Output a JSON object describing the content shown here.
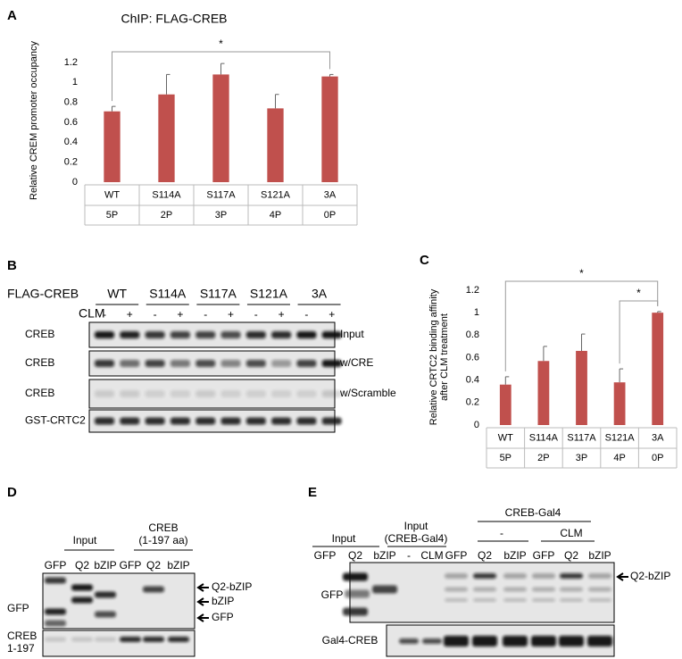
{
  "chart_data": [
    {
      "type": "bar",
      "panel": "A",
      "title": "ChIP: FLAG-CREB",
      "y_label": [
        "Relative CREM promoter occupancy"
      ],
      "categories": [
        "WT",
        "S114A",
        "S117A",
        "S121A",
        "3A"
      ],
      "sublabels": [
        "5P",
        "2P",
        "3P",
        "4P",
        "0P"
      ],
      "values": [
        0.71,
        0.88,
        1.08,
        0.74,
        1.06
      ],
      "errors": [
        0.05,
        0.2,
        0.11,
        0.14,
        0.02
      ],
      "color": "#c0504d",
      "ylim": [
        0,
        1.2
      ],
      "yticks": [
        0,
        0.2,
        0.4,
        0.6,
        0.8,
        1,
        1.2
      ],
      "annotations": [
        {
          "text": "*",
          "between": [
            "WT",
            "3A"
          ]
        }
      ]
    },
    {
      "type": "bar",
      "panel": "C",
      "y_label": [
        "Relative CRTC2 binding affinity",
        "after CLM treatment"
      ],
      "categories": [
        "WT",
        "S114A",
        "S117A",
        "S121A",
        "3A"
      ],
      "sublabels": [
        "5P",
        "2P",
        "3P",
        "4P",
        "0P"
      ],
      "values": [
        0.36,
        0.57,
        0.66,
        0.38,
        1.0
      ],
      "errors": [
        0.07,
        0.13,
        0.15,
        0.12,
        0.01
      ],
      "color": "#c0504d",
      "ylim": [
        0,
        1.2
      ],
      "yticks": [
        0,
        0.2,
        0.4,
        0.6,
        0.8,
        1,
        1.2
      ],
      "annotations": [
        {
          "text": "*",
          "between": [
            "WT",
            "3A"
          ]
        },
        {
          "text": "*",
          "between": [
            "S121A",
            "3A"
          ]
        }
      ]
    }
  ],
  "blot_b": {
    "panel": "B",
    "header": "FLAG-CREB",
    "groups": [
      "WT",
      "S114A",
      "S117A",
      "S121A",
      "3A"
    ],
    "treatment": "CLM",
    "signs": [
      "-",
      "+",
      "-",
      "+",
      "-",
      "+",
      "-",
      "+",
      "-",
      "+"
    ],
    "row_labels": [
      "CREB",
      "CREB",
      "CREB",
      "GST-CRTC2"
    ],
    "right_labels": [
      "Input",
      "w/CRE",
      "w/Scramble"
    ]
  },
  "blot_d": {
    "panel": "D",
    "groups": [
      [
        "Input"
      ],
      [
        "CREB",
        "(1-197 aa)"
      ]
    ],
    "lanes": [
      "GFP",
      "Q2",
      "bZIP",
      "GFP",
      "Q2",
      "bZIP"
    ],
    "row_labels": [
      [
        "GFP"
      ],
      [
        "CREB",
        "1-197"
      ]
    ],
    "arrows": [
      "Q2-bZIP",
      "bZIP",
      "GFP"
    ]
  },
  "blot_e": {
    "panel": "E",
    "groups": [
      [
        "Input"
      ],
      [
        "Input",
        "(CREB-Gal4)"
      ]
    ],
    "super_group": "CREB-Gal4",
    "sub_groups": [
      "-",
      "CLM"
    ],
    "lanes": [
      "GFP",
      "Q2",
      "bZIP",
      "-",
      "CLM",
      "GFP",
      "Q2",
      "bZIP",
      "GFP",
      "Q2",
      "bZIP"
    ],
    "row_labels": [
      "GFP",
      "Gal4-CREB"
    ],
    "arrows": [
      "Q2-bZIP"
    ]
  }
}
